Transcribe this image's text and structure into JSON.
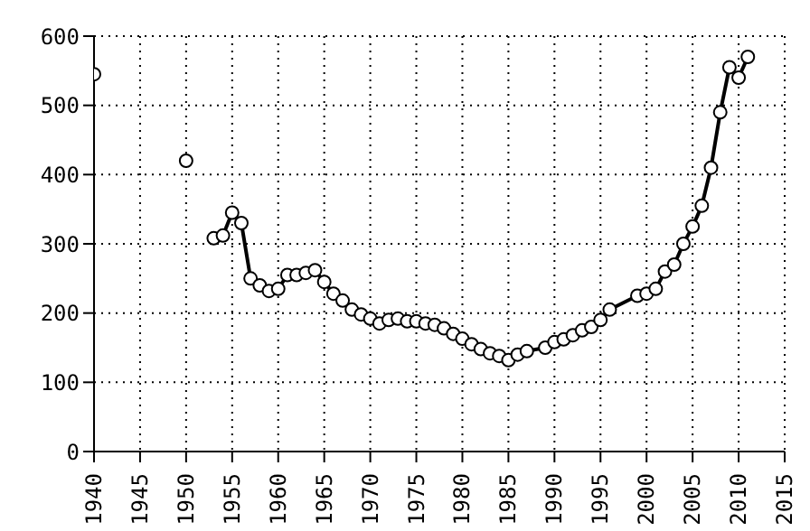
{
  "chart_data": {
    "type": "line",
    "marker": "circle",
    "grid": true,
    "x": [
      1940,
      1945,
      1950,
      1952,
      1953,
      1954,
      1955,
      1956,
      1957,
      1958,
      1959,
      1960,
      1961,
      1962,
      1963,
      1964,
      1965,
      1966,
      1967,
      1968,
      1969,
      1970,
      1971,
      1972,
      1973,
      1974,
      1975,
      1976,
      1977,
      1978,
      1979,
      1980,
      1981,
      1982,
      1983,
      1984,
      1985,
      1986,
      1987,
      1989,
      1990,
      1991,
      1992,
      1993,
      1994,
      1995,
      1996,
      1999,
      2000,
      2001,
      2002,
      2003,
      2004,
      2005,
      2006,
      2007,
      2008,
      2009,
      2010,
      2011
    ],
    "series": [
      {
        "color": "#000000",
        "values": [
          545,
          null,
          420,
          null,
          308,
          312,
          345,
          330,
          250,
          240,
          232,
          235,
          255,
          255,
          258,
          262,
          245,
          228,
          218,
          205,
          198,
          192,
          185,
          190,
          192,
          188,
          188,
          185,
          183,
          178,
          170,
          163,
          155,
          148,
          142,
          138,
          132,
          140,
          145,
          150,
          158,
          162,
          168,
          175,
          180,
          190,
          205,
          225,
          228,
          235,
          260,
          270,
          300,
          325,
          355,
          410,
          490,
          555,
          540,
          570
        ]
      }
    ],
    "xlim": [
      1940,
      2015
    ],
    "xticks": [
      1940,
      1945,
      1950,
      1955,
      1960,
      1965,
      1970,
      1975,
      1980,
      1985,
      1990,
      1995,
      2000,
      2005,
      2010,
      2015
    ],
    "ylim": [
      0,
      600
    ],
    "yticks": [
      0,
      100,
      200,
      300,
      400,
      500,
      600
    ]
  }
}
